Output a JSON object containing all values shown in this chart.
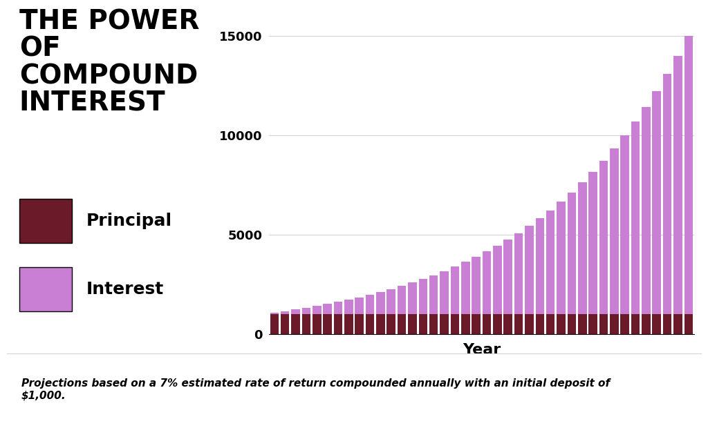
{
  "title": "THE POWER\nOF\nCOMPOUND\nINTEREST",
  "principal": 1000,
  "rate": 0.07,
  "years": 40,
  "principal_color": "#6B1A2A",
  "interest_color": "#C97FD4",
  "background_color": "#FFFFFF",
  "xlabel": "Year",
  "ylabel": "",
  "ylim": [
    0,
    15500
  ],
  "yticks": [
    0,
    5000,
    10000,
    15000
  ],
  "legend_labels": [
    "Principal",
    "Interest"
  ],
  "footnote": "Projections based on a 7% estimated rate of return compounded annually with an initial deposit of\n$1,000.",
  "title_fontsize": 28,
  "axis_label_fontsize": 16,
  "legend_fontsize": 18,
  "footnote_fontsize": 11
}
